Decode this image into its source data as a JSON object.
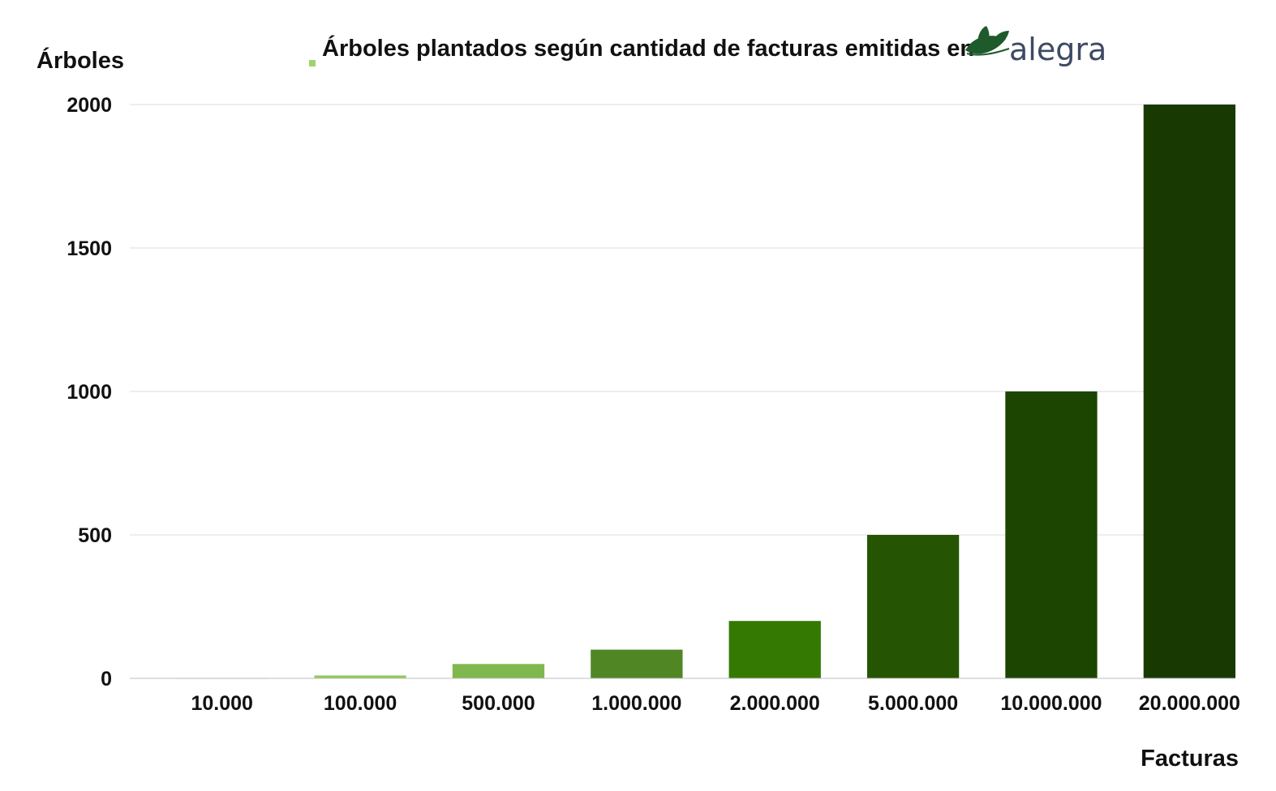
{
  "chart_data": {
    "type": "bar",
    "title": "Árboles plantados según cantidad de facturas emitidas en",
    "logo_text": "alegra",
    "ylabel": "Árboles",
    "xlabel": "Facturas",
    "categories": [
      "10.000",
      "100.000",
      "500.000",
      "1.000.000",
      "2.000.000",
      "5.000.000",
      "10.000.000",
      "20.000.000"
    ],
    "values": [
      1,
      10,
      50,
      100,
      200,
      500,
      1000,
      2000
    ],
    "bar_colors": [
      "#a9d87c",
      "#8fca62",
      "#7fb84e",
      "#518624",
      "#347a02",
      "#255502",
      "#1d4502",
      "#183a02"
    ],
    "ylim": [
      0,
      2000
    ],
    "yticks": [
      "0",
      "500",
      "1000",
      "1500",
      "2000"
    ],
    "grid": true,
    "legend_marker_color": "#9ed46b",
    "logo_colors": {
      "leaf": "#1e5a2b",
      "text": "#3d4a63"
    }
  }
}
